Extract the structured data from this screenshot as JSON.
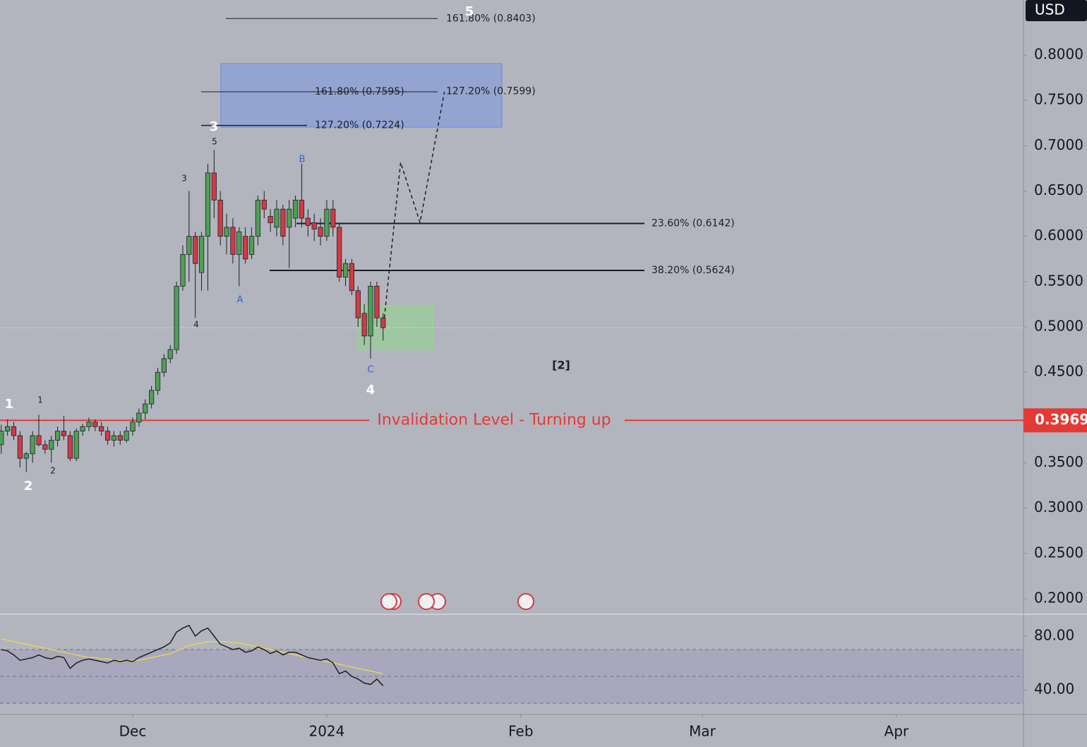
{
  "chart_data": {
    "type": "candlestick",
    "currency": "USD",
    "xlim": [
      -21.2,
      142.3
    ],
    "xticks": [
      {
        "value": 0,
        "label": "Dec"
      },
      {
        "value": 31,
        "label": "2024"
      },
      {
        "value": 62,
        "label": "Feb"
      },
      {
        "value": 91,
        "label": "Mar"
      },
      {
        "value": 122,
        "label": "Apr"
      }
    ],
    "ylim": [
      0.1829,
      0.8608
    ],
    "yticks": [
      {
        "value": 0.2,
        "label": "0.2000"
      },
      {
        "value": 0.25,
        "label": "0.2500"
      },
      {
        "value": 0.3,
        "label": "0.3000"
      },
      {
        "value": 0.35,
        "label": "0.3500"
      },
      {
        "value": 0.45,
        "label": "0.4500"
      },
      {
        "value": 0.5,
        "label": "0.5000"
      },
      {
        "value": 0.55,
        "label": "0.5500"
      },
      {
        "value": 0.6,
        "label": "0.6000"
      },
      {
        "value": 0.65,
        "label": "0.6500"
      },
      {
        "value": 0.7,
        "label": "0.7000"
      },
      {
        "value": 0.75,
        "label": "0.7500"
      },
      {
        "value": 0.8,
        "label": "0.8000"
      }
    ],
    "up_color": "#4f9f54",
    "down_color": "#d23a45",
    "x": [
      -21,
      -20,
      -19,
      -18,
      -17,
      -16,
      -15,
      -14,
      -13,
      -12,
      -11,
      -10,
      -9,
      -8,
      -7,
      -6,
      -5,
      -4,
      -3,
      -2,
      -1,
      0,
      1,
      2,
      3,
      4,
      5,
      6,
      7,
      8,
      9,
      10,
      11,
      12,
      13,
      14,
      15,
      16,
      17,
      18,
      19,
      20,
      21,
      22,
      23,
      24,
      25,
      26,
      27,
      28,
      29,
      30,
      31,
      32,
      33,
      34,
      35,
      36,
      37,
      38,
      39,
      40
    ],
    "open": [
      0.37,
      0.385,
      0.39,
      0.38,
      0.355,
      0.36,
      0.38,
      0.37,
      0.365,
      0.375,
      0.385,
      0.38,
      0.355,
      0.385,
      0.39,
      0.395,
      0.39,
      0.385,
      0.375,
      0.38,
      0.375,
      0.385,
      0.395,
      0.405,
      0.415,
      0.43,
      0.45,
      0.465,
      0.475,
      0.545,
      0.58,
      0.6,
      0.56,
      0.6,
      0.67,
      0.64,
      0.6,
      0.61,
      0.58,
      0.6,
      0.58,
      0.6,
      0.64,
      0.622,
      0.61,
      0.63,
      0.61,
      0.62,
      0.64,
      0.62,
      0.615,
      0.61,
      0.6,
      0.63,
      0.61,
      0.555,
      0.57,
      0.54,
      0.515,
      0.49,
      0.545,
      0.51
    ],
    "high": [
      0.392,
      0.398,
      0.395,
      0.385,
      0.362,
      0.385,
      0.403,
      0.375,
      0.38,
      0.39,
      0.402,
      0.385,
      0.388,
      0.393,
      0.4,
      0.398,
      0.395,
      0.39,
      0.385,
      0.385,
      0.39,
      0.4,
      0.41,
      0.42,
      0.435,
      0.455,
      0.47,
      0.48,
      0.55,
      0.59,
      0.65,
      0.605,
      0.605,
      0.68,
      0.695,
      0.65,
      0.625,
      0.62,
      0.61,
      0.61,
      0.61,
      0.645,
      0.65,
      0.63,
      0.64,
      0.635,
      0.64,
      0.645,
      0.68,
      0.63,
      0.625,
      0.62,
      0.64,
      0.64,
      0.615,
      0.575,
      0.575,
      0.545,
      0.525,
      0.55,
      0.55,
      0.515
    ],
    "low": [
      0.36,
      0.38,
      0.375,
      0.345,
      0.34,
      0.35,
      0.368,
      0.36,
      0.35,
      0.368,
      0.375,
      0.352,
      0.352,
      0.38,
      0.385,
      0.385,
      0.38,
      0.37,
      0.368,
      0.37,
      0.372,
      0.38,
      0.39,
      0.398,
      0.41,
      0.425,
      0.445,
      0.46,
      0.47,
      0.54,
      0.55,
      0.51,
      0.54,
      0.54,
      0.62,
      0.59,
      0.58,
      0.57,
      0.545,
      0.57,
      0.575,
      0.59,
      0.62,
      0.605,
      0.6,
      0.59,
      0.565,
      0.61,
      0.61,
      0.6,
      0.595,
      0.59,
      0.595,
      0.6,
      0.55,
      0.545,
      0.535,
      0.5,
      0.48,
      0.465,
      0.5,
      0.485
    ],
    "close": [
      0.385,
      0.39,
      0.38,
      0.355,
      0.36,
      0.38,
      0.37,
      0.365,
      0.375,
      0.385,
      0.38,
      0.355,
      0.385,
      0.39,
      0.395,
      0.39,
      0.385,
      0.375,
      0.38,
      0.375,
      0.385,
      0.395,
      0.405,
      0.415,
      0.43,
      0.45,
      0.465,
      0.475,
      0.545,
      0.58,
      0.6,
      0.57,
      0.6,
      0.67,
      0.64,
      0.6,
      0.61,
      0.58,
      0.605,
      0.575,
      0.6,
      0.64,
      0.63,
      0.615,
      0.63,
      0.6,
      0.63,
      0.64,
      0.62,
      0.612,
      0.608,
      0.6,
      0.63,
      0.61,
      0.555,
      0.57,
      0.54,
      0.51,
      0.49,
      0.545,
      0.51,
      0.4992
    ],
    "fib_levels": [
      {
        "label": "161.80% (0.8403)",
        "value": 0.8403
      },
      {
        "label": "161.80% (0.7595)",
        "value": 0.7595
      },
      {
        "label": "127.20% (0.7599)",
        "value": 0.7599
      },
      {
        "label": "127.20% (0.7224)",
        "value": 0.7224
      },
      {
        "label": "23.60% (0.6142)",
        "value": 0.6142
      },
      {
        "label": "38.20% (0.5624)",
        "value": 0.5624
      }
    ],
    "invalidation": {
      "label": "Invalidation Level - Turning up",
      "value": 0.3969,
      "color": "#e53935"
    },
    "zones": [
      {
        "top": 0.7906,
        "bottom": 0.7205,
        "color": "#7b95e0"
      },
      {
        "top": 0.5234,
        "bottom": 0.475,
        "color": "#8fd68a"
      }
    ],
    "projection": {
      "x": [
        40.2,
        42.8,
        45.9,
        49.8
      ],
      "values": [
        0.5101,
        0.6816,
        0.6153,
        0.7595
      ]
    },
    "wave_labels": [
      "5",
      "3",
      "5",
      "3",
      "4",
      "A",
      "B",
      "C",
      "4",
      "1",
      "1",
      "2",
      "2",
      "[2]"
    ],
    "rsi": {
      "ylim": [
        21.6,
        96.3
      ],
      "yticks": [
        {
          "value": 80,
          "label": "80.00"
        },
        {
          "value": 40,
          "label": "40.00"
        }
      ],
      "levels": [
        70,
        50,
        30
      ],
      "series": [
        {
          "color": "#1e1e1e",
          "values": [
            70,
            69,
            66,
            62,
            63,
            64,
            66,
            64,
            63,
            65,
            64,
            56,
            60,
            62,
            63,
            62,
            61,
            60,
            62,
            61,
            62,
            61,
            64,
            66,
            68,
            70,
            72,
            75,
            83,
            86,
            88,
            80,
            84,
            86,
            80,
            74,
            72,
            70,
            71,
            68,
            69,
            72,
            70,
            67,
            69,
            66,
            68,
            68,
            66,
            64,
            63,
            62,
            63,
            60,
            52,
            54,
            50,
            48,
            45,
            44,
            48,
            43
          ]
        },
        {
          "color": "#e8d35a",
          "values": [
            78,
            77,
            76,
            75,
            74,
            73,
            72,
            71,
            70,
            69,
            68,
            67,
            66,
            65,
            64,
            64,
            63,
            63,
            62,
            62,
            62,
            62,
            62,
            63,
            64,
            65,
            66,
            67,
            69,
            71,
            73,
            74,
            75,
            76,
            76,
            76,
            76,
            75,
            75,
            74,
            73,
            72,
            71,
            70,
            69,
            68,
            67,
            66,
            65,
            64,
            63,
            62,
            61,
            60,
            59,
            58,
            57,
            56,
            55,
            54,
            53,
            52
          ]
        }
      ]
    }
  }
}
